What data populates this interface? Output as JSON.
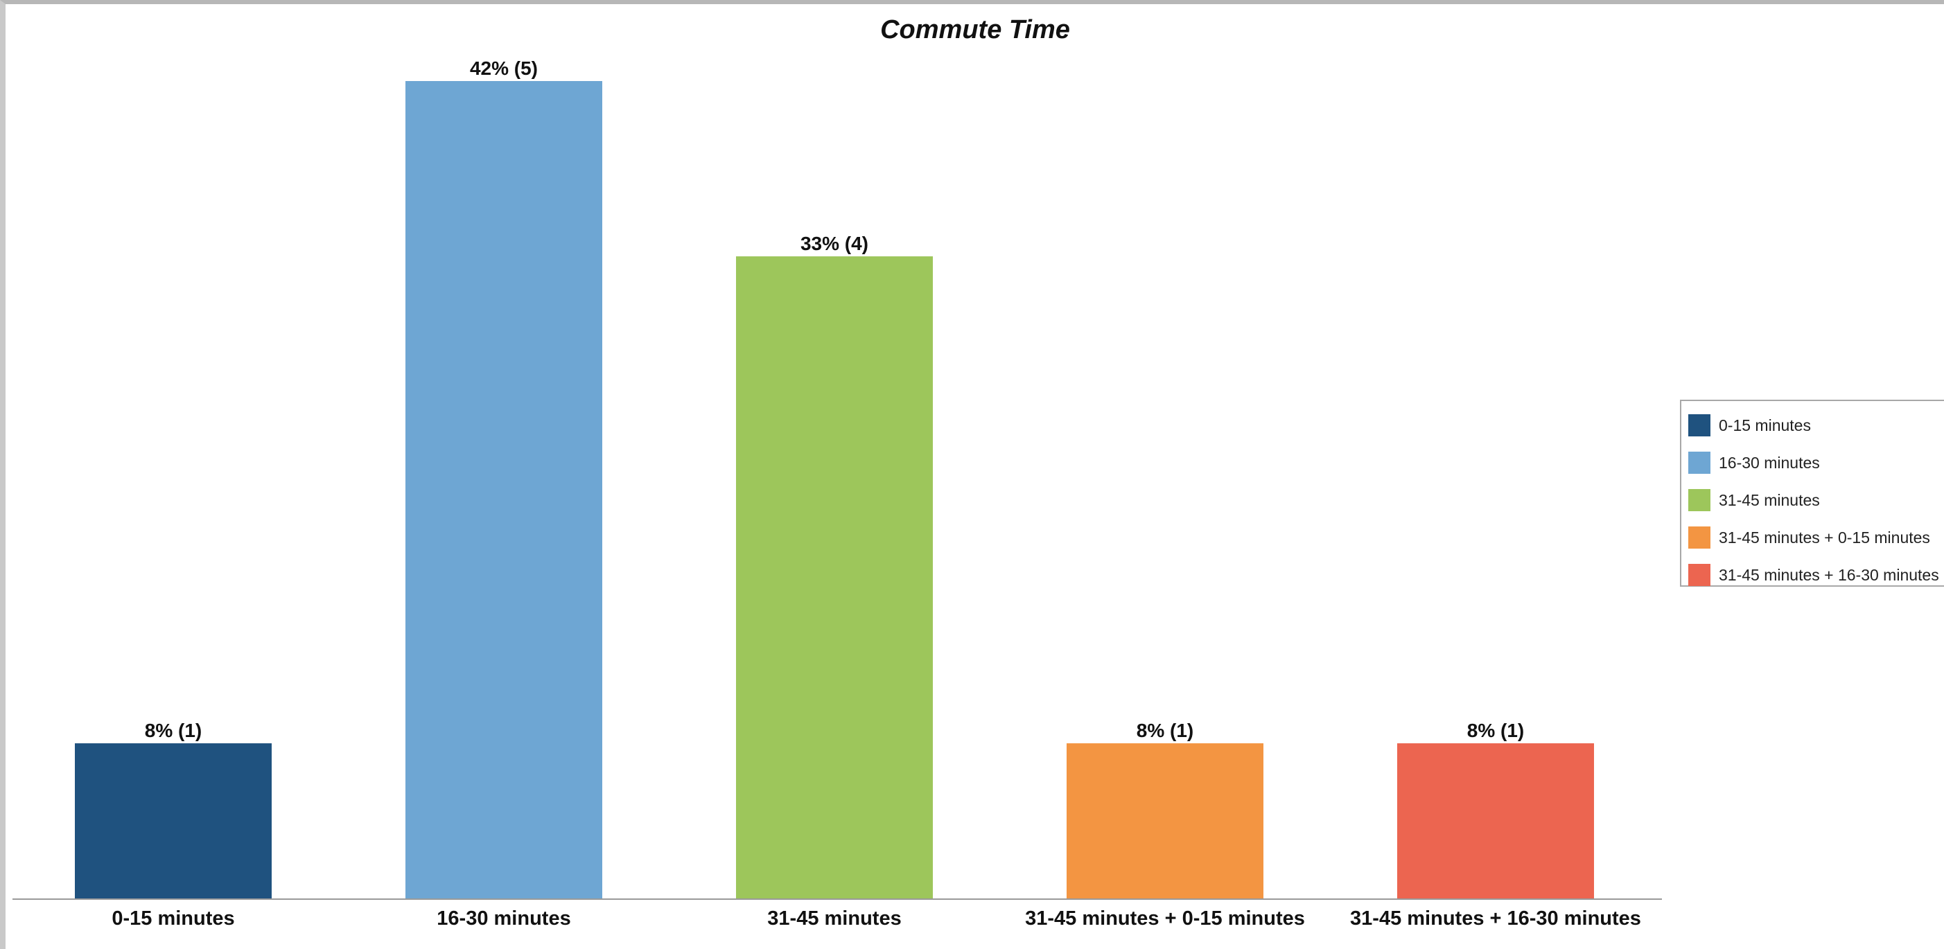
{
  "chart_data": {
    "type": "bar",
    "title": "Commute Time",
    "xlabel": "",
    "ylabel": "",
    "categories": [
      "0-15 minutes",
      "16-30 minutes",
      "31-45 minutes",
      "31-45 minutes + 0-15 minutes",
      "31-45 minutes + 16-30 minutes"
    ],
    "values": [
      8,
      42,
      33,
      8,
      8
    ],
    "counts": [
      1,
      5,
      4,
      1,
      1
    ],
    "data_labels": [
      "8% (1)",
      "42% (5)",
      "33% (4)",
      "8% (1)",
      "8% (1)"
    ],
    "colors": [
      "#1f527f",
      "#6ea6d3",
      "#9dc65b",
      "#f39542",
      "#ec6550"
    ],
    "ylim": [
      0,
      42
    ],
    "grid": false,
    "legend_position": "right",
    "legend": [
      "0-15 minutes",
      "16-30 minutes",
      "31-45 minutes",
      "31-45 minutes + 0-15 minutes",
      "31-45 minutes + 16-30 minutes"
    ]
  }
}
